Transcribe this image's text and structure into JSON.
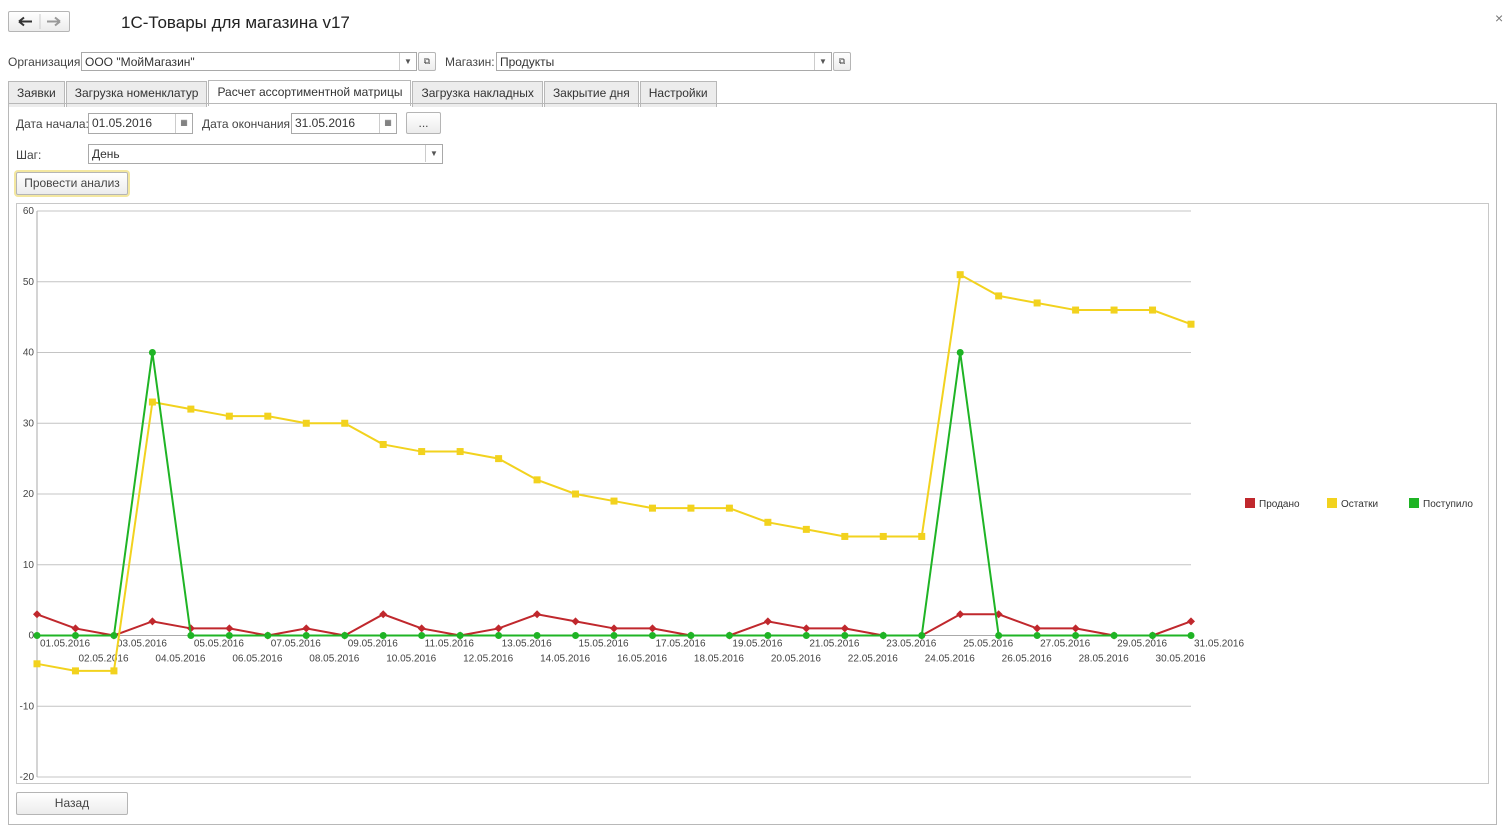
{
  "window": {
    "title": "1С-Товары для магазина v17",
    "close": "×"
  },
  "header": {
    "org_label": "Организация:",
    "org_value": "ООО \"МойМагазин\"",
    "shop_label": "Магазин:",
    "shop_value": "Продукты"
  },
  "tabs": [
    "Заявки",
    "Загрузка номенклатур",
    "Расчет ассортиментной матрицы",
    "Загрузка накладных",
    "Закрытие дня",
    "Настройки"
  ],
  "form": {
    "start_label": "Дата начала:",
    "start_value": "01.05.2016",
    "end_label": "Дата окончания:",
    "end_value": "31.05.2016",
    "period_button": "...",
    "step_label": "Шаг:",
    "step_value": "День",
    "run_button": "Провести анализ",
    "back_button": "Назад"
  },
  "chart_data": {
    "type": "line",
    "categories": [
      "01.05.2016",
      "02.05.2016",
      "03.05.2016",
      "04.05.2016",
      "05.05.2016",
      "06.05.2016",
      "07.05.2016",
      "08.05.2016",
      "09.05.2016",
      "10.05.2016",
      "11.05.2016",
      "12.05.2016",
      "13.05.2016",
      "14.05.2016",
      "15.05.2016",
      "16.05.2016",
      "17.05.2016",
      "18.05.2016",
      "19.05.2016",
      "20.05.2016",
      "21.05.2016",
      "22.05.2016",
      "23.05.2016",
      "24.05.2016",
      "25.05.2016",
      "26.05.2016",
      "27.05.2016",
      "28.05.2016",
      "29.05.2016",
      "30.05.2016",
      "31.05.2016"
    ],
    "series": [
      {
        "name": "Продано",
        "color": "#c0282d",
        "values": [
          3,
          1,
          0,
          2,
          1,
          1,
          0,
          1,
          0,
          3,
          1,
          0,
          1,
          3,
          2,
          1,
          1,
          0,
          0,
          2,
          1,
          1,
          0,
          0,
          3,
          3,
          1,
          1,
          0,
          0,
          2
        ]
      },
      {
        "name": "Остатки",
        "color": "#f2d21e",
        "values": [
          -4,
          -5,
          -5,
          33,
          32,
          31,
          31,
          30,
          30,
          27,
          26,
          26,
          25,
          22,
          20,
          19,
          18,
          18,
          18,
          16,
          15,
          14,
          14,
          14,
          51,
          48,
          47,
          46,
          46,
          46,
          44
        ]
      },
      {
        "name": "Поступило",
        "color": "#1fb425",
        "values": [
          0,
          0,
          0,
          40,
          0,
          0,
          0,
          0,
          0,
          0,
          0,
          0,
          0,
          0,
          0,
          0,
          0,
          0,
          0,
          0,
          0,
          0,
          0,
          0,
          40,
          0,
          0,
          0,
          0,
          0,
          0
        ]
      }
    ],
    "ylim": [
      -20,
      60
    ],
    "yticks": [
      -20,
      -10,
      0,
      10,
      20,
      30,
      40,
      50,
      60
    ],
    "grid": true,
    "legend": "right"
  }
}
